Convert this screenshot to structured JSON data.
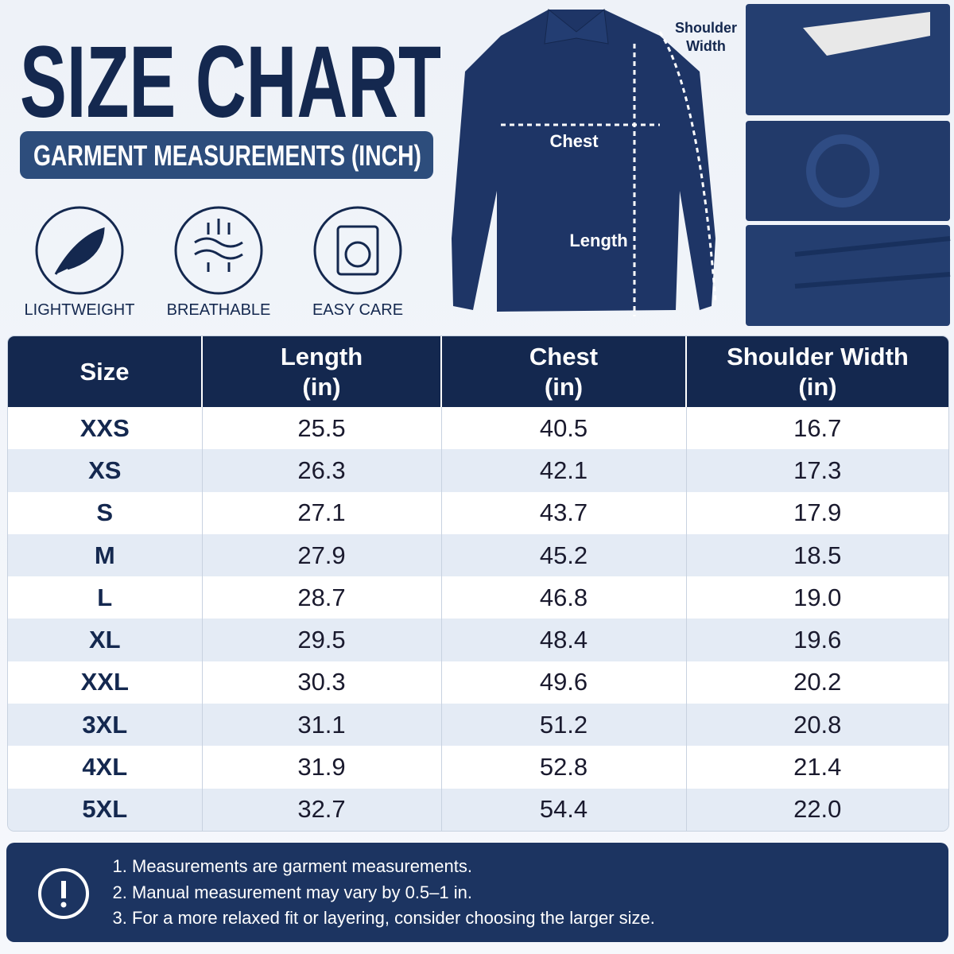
{
  "header": {
    "title": "SIZE CHART",
    "subtitle": "GARMENT MEASUREMENTS (INCH)"
  },
  "features": [
    "LIGHTWEIGHT",
    "BREATHABLE",
    "EASY CARE"
  ],
  "diagram": {
    "chest": "Chest",
    "length": "Length",
    "shoulder": [
      "Shoulder",
      "Width"
    ]
  },
  "table": {
    "columns": [
      {
        "label": "Size"
      },
      {
        "label": "Length",
        "unit": "(in)"
      },
      {
        "label": "Chest",
        "unit": "(in)"
      },
      {
        "label": "Shoulder Width",
        "unit": "(in)"
      }
    ],
    "rows": [
      [
        "XXS",
        "25.5",
        "40.5",
        "16.7"
      ],
      [
        "XS",
        "26.3",
        "42.1",
        "17.3"
      ],
      [
        "S",
        "27.1",
        "43.7",
        "17.9"
      ],
      [
        "M",
        "27.9",
        "45.2",
        "18.5"
      ],
      [
        "L",
        "28.7",
        "46.8",
        "19.0"
      ],
      [
        "XL",
        "29.5",
        "48.4",
        "19.6"
      ],
      [
        "XXL",
        "30.3",
        "49.6",
        "20.2"
      ],
      [
        "3XL",
        "31.1",
        "51.2",
        "20.8"
      ],
      [
        "4XL",
        "31.9",
        "52.8",
        "21.4"
      ],
      [
        "5XL",
        "32.7",
        "54.4",
        "22.0"
      ]
    ]
  },
  "notes": [
    "Measurements are garment measurements.",
    "Manual measurement may vary by 0.5–1 in.",
    "For a more relaxed fit or layering, consider choosing the larger size."
  ]
}
